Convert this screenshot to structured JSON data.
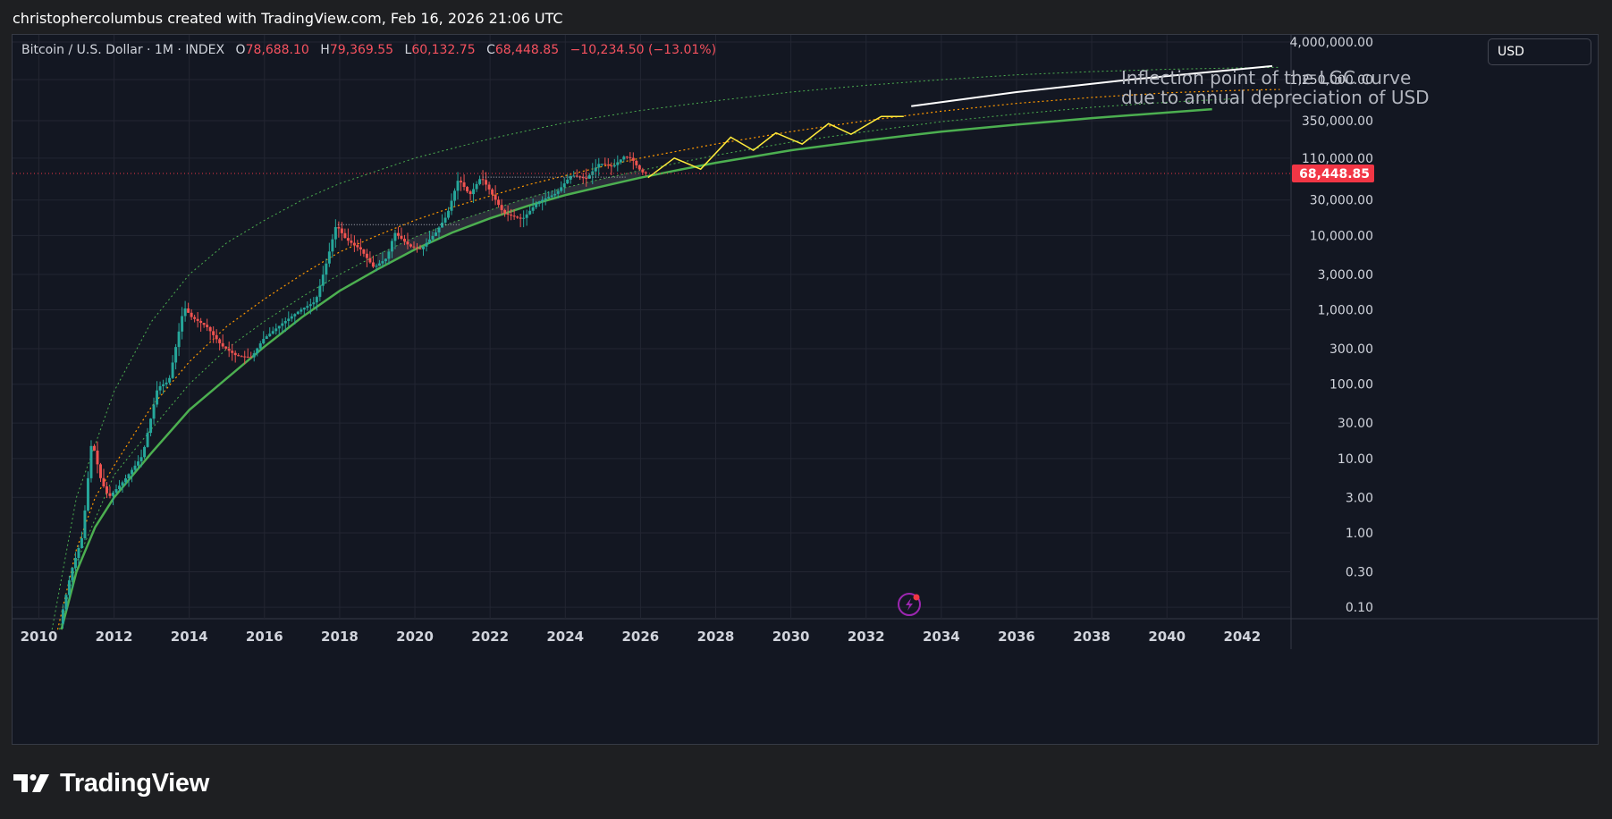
{
  "header": {
    "attribution": "christophercolumbus created with TradingView.com, Feb 16, 2026 21:06 UTC"
  },
  "legend": {
    "symbol": "Bitcoin / U.S. Dollar · 1M · INDEX",
    "open_label": "O",
    "open": "78,688.10",
    "high_label": "H",
    "high": "79,369.55",
    "low_label": "L",
    "low": "60,132.75",
    "close_label": "C",
    "close": "68,448.85",
    "change": "−10,234.50 (−13.01%)"
  },
  "currency_selector": {
    "label": "USD"
  },
  "annotation": {
    "line1": "Inflection point of the LGC curve",
    "line2": "due to annual depreciation of USD"
  },
  "price_tag": {
    "value": "68,448.85",
    "color": "#f23645"
  },
  "footer": {
    "brand": "TradingView"
  },
  "colors": {
    "background": "#131722",
    "grid": "#232632",
    "up": "#26a69a",
    "down": "#ef5350",
    "support": "#4caf50",
    "band": "#4caf50",
    "mid": "#ff9800",
    "projection": "#ffeb3b",
    "projection_white": "#ffffff",
    "axis_text": "#d1d4dc"
  },
  "chart_data": {
    "type": "line",
    "title": "",
    "xlabel": "",
    "ylabel": "",
    "y_scale": "log",
    "xlim": [
      2009.3,
      2043.3
    ],
    "ylim": [
      0.07,
      5000000
    ],
    "x_ticks": [
      "2010",
      "2012",
      "2014",
      "2016",
      "2018",
      "2020",
      "2022",
      "2024",
      "2026",
      "2028",
      "2030",
      "2032",
      "2034",
      "2036",
      "2038",
      "2040",
      "2042"
    ],
    "y_ticks": [
      {
        "value": 4000000,
        "label": "4,000,000.00"
      },
      {
        "value": 1250000,
        "label": "1,250,000.00"
      },
      {
        "value": 350000,
        "label": "350,000.00"
      },
      {
        "value": 110000,
        "label": "110,000.00"
      },
      {
        "value": 30000,
        "label": "30,000.00"
      },
      {
        "value": 10000,
        "label": "10,000.00"
      },
      {
        "value": 3000,
        "label": "3,000.00"
      },
      {
        "value": 1000,
        "label": "1,000.00"
      },
      {
        "value": 300,
        "label": "300.00"
      },
      {
        "value": 100,
        "label": "100.00"
      },
      {
        "value": 30,
        "label": "30.00"
      },
      {
        "value": 10,
        "label": "10.00"
      },
      {
        "value": 3,
        "label": "3.00"
      },
      {
        "value": 1,
        "label": "1.00"
      },
      {
        "value": 0.3,
        "label": "0.30"
      },
      {
        "value": 0.1,
        "label": "0.10"
      }
    ],
    "last_price": 68448.85,
    "curves": {
      "support": [
        [
          2010.6,
          0.05
        ],
        [
          2011.0,
          0.3
        ],
        [
          2011.5,
          1.2
        ],
        [
          2012.0,
          3
        ],
        [
          2013.0,
          12
        ],
        [
          2014.0,
          45
        ],
        [
          2015.0,
          120
        ],
        [
          2016.0,
          320
        ],
        [
          2017.0,
          800
        ],
        [
          2018.0,
          1800
        ],
        [
          2019.0,
          3500
        ],
        [
          2020.0,
          6500
        ],
        [
          2021.0,
          11000
        ],
        [
          2022.0,
          17000
        ],
        [
          2023.0,
          25000
        ],
        [
          2024.0,
          35000
        ],
        [
          2025.0,
          46000
        ],
        [
          2026.0,
          60000
        ],
        [
          2027.0,
          76000
        ],
        [
          2028.0,
          95000
        ],
        [
          2030.0,
          140000
        ],
        [
          2032.0,
          190000
        ],
        [
          2034.0,
          250000
        ],
        [
          2036.0,
          310000
        ],
        [
          2038.0,
          380000
        ],
        [
          2040.0,
          450000
        ],
        [
          2041.2,
          500000
        ]
      ],
      "mid": [
        [
          2010.5,
          0.05
        ],
        [
          2011.0,
          0.6
        ],
        [
          2011.5,
          3
        ],
        [
          2012.0,
          8
        ],
        [
          2013.0,
          50
        ],
        [
          2014.0,
          200
        ],
        [
          2015.0,
          600
        ],
        [
          2016.0,
          1400
        ],
        [
          2017.0,
          3000
        ],
        [
          2018.0,
          6000
        ],
        [
          2019.0,
          10000
        ],
        [
          2020.0,
          16000
        ],
        [
          2021.0,
          24000
        ],
        [
          2022.0,
          34000
        ],
        [
          2023.0,
          48000
        ],
        [
          2024.0,
          64000
        ],
        [
          2025.0,
          85000
        ],
        [
          2026.0,
          110000
        ],
        [
          2028.0,
          170000
        ],
        [
          2030.0,
          250000
        ],
        [
          2032.0,
          350000
        ],
        [
          2034.0,
          470000
        ],
        [
          2036.0,
          600000
        ],
        [
          2038.0,
          720000
        ],
        [
          2040.0,
          830000
        ],
        [
          2042.0,
          900000
        ],
        [
          2043.0,
          920000
        ]
      ],
      "upper_band": [
        [
          2010.35,
          0.05
        ],
        [
          2011.0,
          3
        ],
        [
          2012.0,
          80
        ],
        [
          2013.0,
          700
        ],
        [
          2014.0,
          3000
        ],
        [
          2015.0,
          8000
        ],
        [
          2016.0,
          16000
        ],
        [
          2017.0,
          30000
        ],
        [
          2018.0,
          50000
        ],
        [
          2020.0,
          110000
        ],
        [
          2022.0,
          200000
        ],
        [
          2024.0,
          330000
        ],
        [
          2026.0,
          480000
        ],
        [
          2028.0,
          650000
        ],
        [
          2030.0,
          850000
        ],
        [
          2032.0,
          1050000
        ],
        [
          2034.0,
          1250000
        ],
        [
          2036.0,
          1450000
        ],
        [
          2038.0,
          1600000
        ],
        [
          2040.0,
          1720000
        ],
        [
          2042.0,
          1800000
        ],
        [
          2043.0,
          1830000
        ]
      ],
      "lower_band": [
        [
          2010.55,
          0.05
        ],
        [
          2011.0,
          0.4
        ],
        [
          2012.0,
          6
        ],
        [
          2013.0,
          25
        ],
        [
          2014.0,
          100
        ],
        [
          2015.0,
          300
        ],
        [
          2016.0,
          700
        ],
        [
          2017.0,
          1500
        ],
        [
          2018.0,
          3000
        ],
        [
          2019.0,
          5500
        ],
        [
          2020.0,
          9500
        ],
        [
          2021.0,
          15000
        ],
        [
          2022.0,
          22000
        ],
        [
          2023.0,
          32000
        ],
        [
          2024.0,
          44000
        ],
        [
          2025.0,
          58000
        ],
        [
          2026.0,
          75000
        ],
        [
          2028.0,
          120000
        ],
        [
          2030.0,
          180000
        ],
        [
          2032.0,
          250000
        ],
        [
          2034.0,
          340000
        ],
        [
          2036.0,
          430000
        ],
        [
          2038.0,
          530000
        ],
        [
          2040.0,
          620000
        ],
        [
          2042.0,
          700000
        ]
      ],
      "projection": [
        [
          2026.2,
          60000
        ],
        [
          2026.9,
          110000
        ],
        [
          2027.6,
          78000
        ],
        [
          2028.4,
          210000
        ],
        [
          2029.0,
          140000
        ],
        [
          2029.6,
          240000
        ],
        [
          2030.3,
          170000
        ],
        [
          2031.0,
          320000
        ],
        [
          2031.6,
          230000
        ],
        [
          2032.4,
          400000
        ],
        [
          2033.0,
          400000
        ]
      ],
      "white_trend": [
        [
          2033.2,
          550000
        ],
        [
          2036.0,
          850000
        ],
        [
          2039.0,
          1250000
        ],
        [
          2042.8,
          1900000
        ]
      ]
    },
    "series": [
      {
        "values": [
          [
            2010.6,
            0.06
          ],
          [
            2010.9,
            0.3
          ],
          [
            2011.2,
            0.9
          ],
          [
            2011.45,
            18
          ],
          [
            2011.7,
            5
          ],
          [
            2011.9,
            3
          ],
          [
            2012.3,
            5
          ],
          [
            2012.8,
            11
          ],
          [
            2013.2,
            90
          ],
          [
            2013.5,
            110
          ],
          [
            2013.9,
            1100
          ],
          [
            2014.1,
            800
          ],
          [
            2014.5,
            600
          ],
          [
            2014.9,
            330
          ],
          [
            2015.3,
            240
          ],
          [
            2015.7,
            230
          ],
          [
            2016.0,
            400
          ],
          [
            2016.5,
            650
          ],
          [
            2017.0,
            1000
          ],
          [
            2017.4,
            1300
          ],
          [
            2017.7,
            4500
          ],
          [
            2017.95,
            14000
          ],
          [
            2018.2,
            9000
          ],
          [
            2018.6,
            6500
          ],
          [
            2018.95,
            3700
          ],
          [
            2019.3,
            5000
          ],
          [
            2019.5,
            11000
          ],
          [
            2019.9,
            7200
          ],
          [
            2020.2,
            6500
          ],
          [
            2020.6,
            11000
          ],
          [
            2020.9,
            19000
          ],
          [
            2021.2,
            58000
          ],
          [
            2021.5,
            35000
          ],
          [
            2021.8,
            61000
          ],
          [
            2022.0,
            43000
          ],
          [
            2022.4,
            20000
          ],
          [
            2022.9,
            16500
          ],
          [
            2023.3,
            28000
          ],
          [
            2023.8,
            37000
          ],
          [
            2024.2,
            65000
          ],
          [
            2024.6,
            58000
          ],
          [
            2024.95,
            94000
          ],
          [
            2025.3,
            84000
          ],
          [
            2025.6,
            115000
          ],
          [
            2025.8,
            110000
          ],
          [
            2026.0,
            78688
          ],
          [
            2026.13,
            68448
          ]
        ]
      }
    ]
  }
}
